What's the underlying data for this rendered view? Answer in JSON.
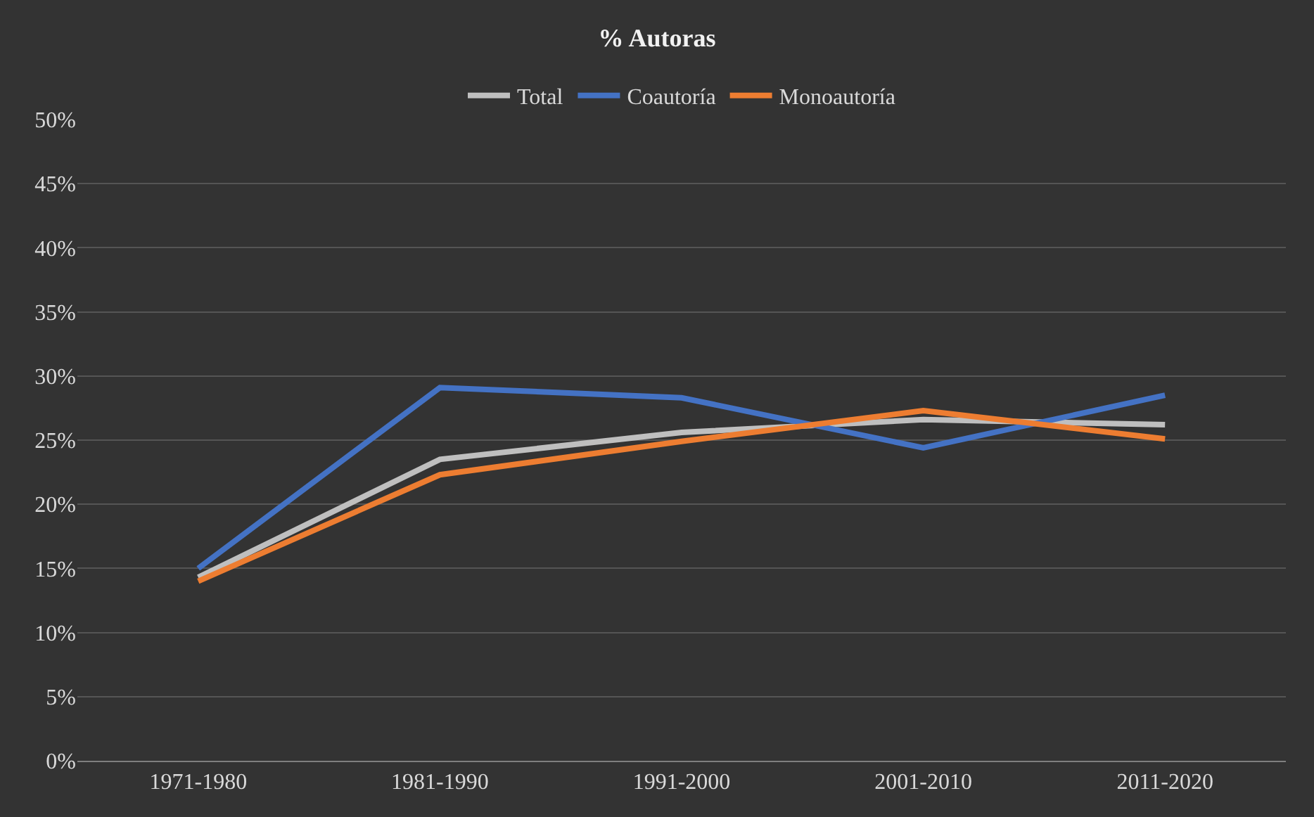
{
  "chart_data": {
    "type": "line",
    "title": "% Autoras",
    "categories": [
      "1971-1980",
      "1981-1990",
      "1991-2000",
      "2001-2010",
      "2011-2020"
    ],
    "series": [
      {
        "name": "Total",
        "color": "#bfbfbf",
        "values": [
          14.3,
          23.5,
          25.6,
          26.6,
          26.2
        ]
      },
      {
        "name": "Coautoría",
        "color": "#4472c4",
        "values": [
          15.0,
          29.1,
          28.3,
          24.4,
          28.5
        ]
      },
      {
        "name": "Monoautoría",
        "color": "#ed7d31",
        "values": [
          14.0,
          22.3,
          24.9,
          27.3,
          25.1
        ]
      }
    ],
    "ylim": [
      0,
      50
    ],
    "yticks": [
      {
        "value": 0,
        "label": "0%"
      },
      {
        "value": 5,
        "label": "5%"
      },
      {
        "value": 10,
        "label": "10%"
      },
      {
        "value": 15,
        "label": "15%"
      },
      {
        "value": 20,
        "label": "20%"
      },
      {
        "value": 25,
        "label": "25%"
      },
      {
        "value": 30,
        "label": "30%"
      },
      {
        "value": 35,
        "label": "35%"
      },
      {
        "value": 40,
        "label": "40%"
      },
      {
        "value": 45,
        "label": "45%"
      },
      {
        "value": 50,
        "label": "50%"
      }
    ],
    "grid": "y",
    "legend": "top",
    "marker": "none",
    "line_style": "solid"
  }
}
